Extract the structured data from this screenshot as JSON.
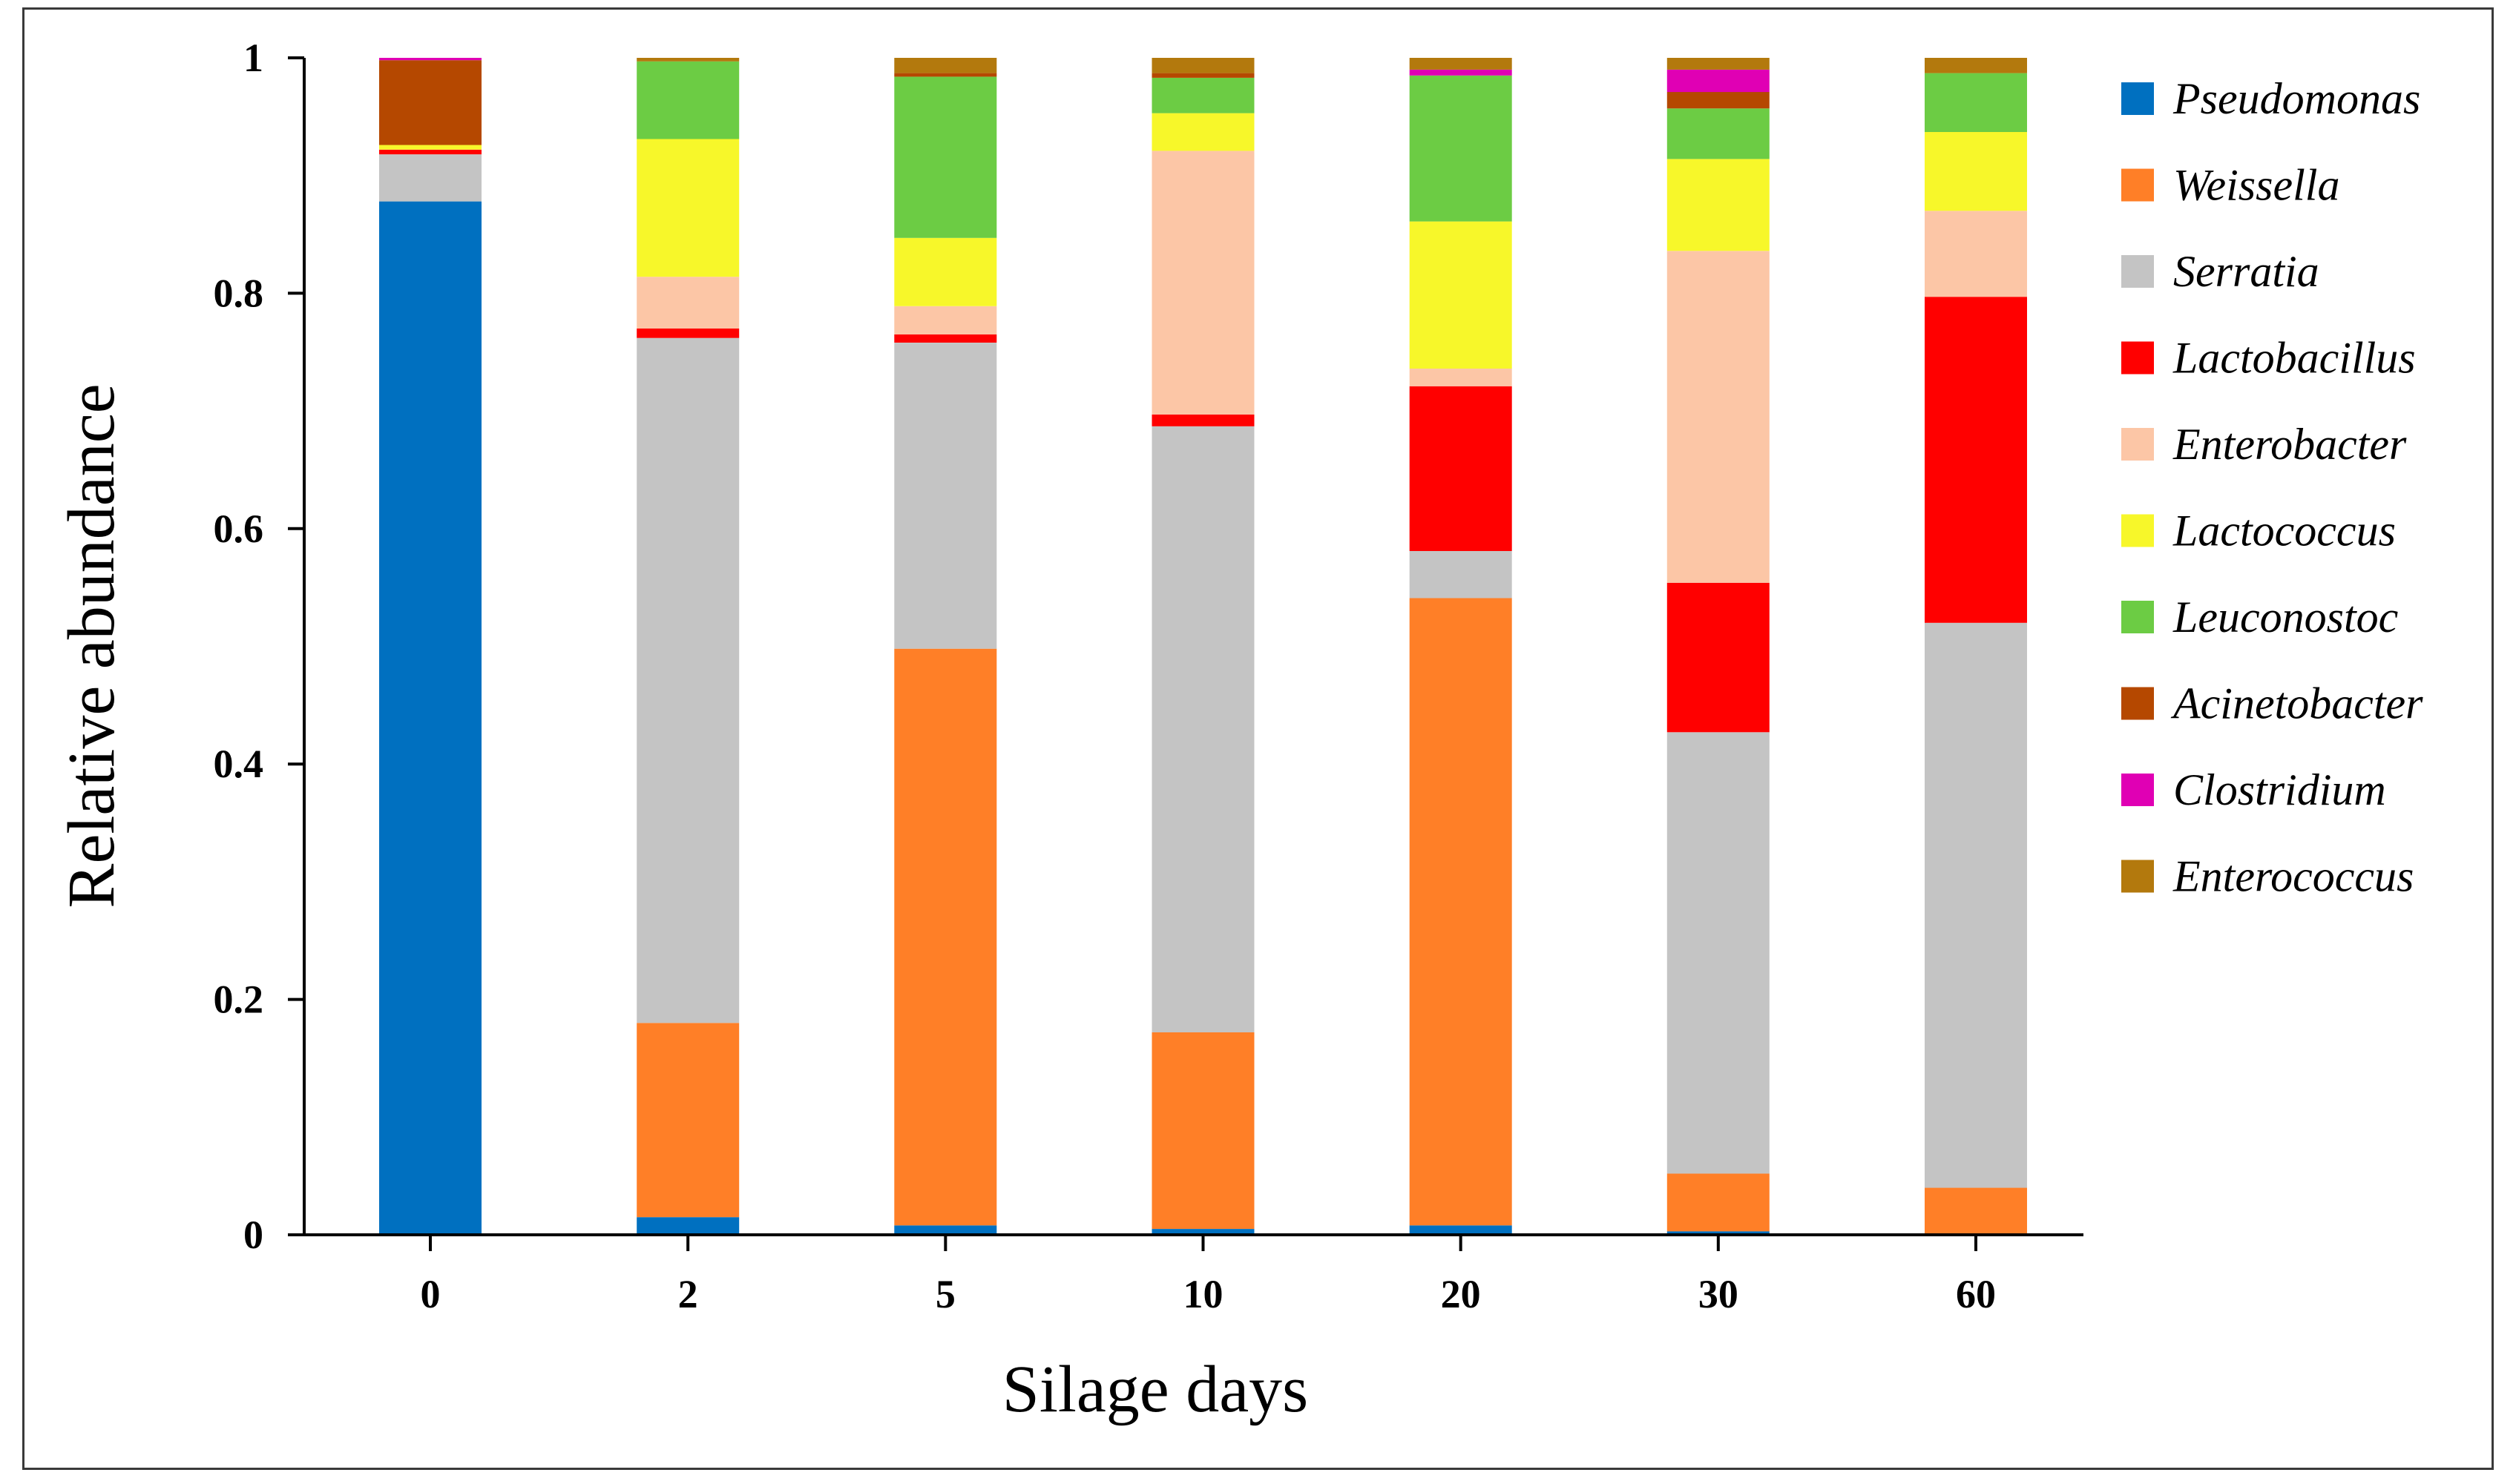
{
  "chart_data": {
    "type": "bar",
    "stacked": true,
    "xlabel": "Silage days",
    "ylabel": "Relative abundance",
    "categories": [
      "0",
      "2",
      "5",
      "10",
      "20",
      "30",
      "60"
    ],
    "ylim": [
      0,
      1
    ],
    "yticks": [
      "0",
      "0.2",
      "0.4",
      "0.6",
      "0.8",
      "1"
    ],
    "legend_position": "right",
    "series": [
      {
        "name": "Pseudomonas",
        "color": "#0070c0",
        "values": [
          0.878,
          0.015,
          0.008,
          0.005,
          0.008,
          0.003,
          0.0
        ]
      },
      {
        "name": "Weissella",
        "color": "#ff7f27",
        "values": [
          0.0,
          0.165,
          0.49,
          0.167,
          0.533,
          0.049,
          0.04
        ]
      },
      {
        "name": "Serratia",
        "color": "#c4c4c4",
        "values": [
          0.04,
          0.582,
          0.26,
          0.515,
          0.04,
          0.375,
          0.48
        ]
      },
      {
        "name": "Lactobacillus",
        "color": "#ff0000",
        "values": [
          0.004,
          0.008,
          0.007,
          0.01,
          0.14,
          0.127,
          0.277
        ]
      },
      {
        "name": "Enterobacter",
        "color": "#fcc6a6",
        "values": [
          0.0,
          0.044,
          0.024,
          0.224,
          0.015,
          0.282,
          0.073
        ]
      },
      {
        "name": "Lactococcus",
        "color": "#f7f72a",
        "values": [
          0.004,
          0.117,
          0.058,
          0.032,
          0.125,
          0.078,
          0.067
        ]
      },
      {
        "name": "Leuconostoc",
        "color": "#6ccc44",
        "values": [
          0.0,
          0.066,
          0.137,
          0.03,
          0.124,
          0.043,
          0.05
        ]
      },
      {
        "name": "Acinetobacter",
        "color": "#b54800",
        "values": [
          0.072,
          0.0,
          0.003,
          0.004,
          0.0,
          0.014,
          0.0
        ]
      },
      {
        "name": "Clostridium",
        "color": "#e000b4",
        "values": [
          0.002,
          0.0,
          0.0,
          0.0,
          0.005,
          0.019,
          0.0
        ]
      },
      {
        "name": "Enterococcus",
        "color": "#b3790d",
        "values": [
          0.0,
          0.003,
          0.013,
          0.013,
          0.01,
          0.01,
          0.013
        ]
      }
    ]
  }
}
